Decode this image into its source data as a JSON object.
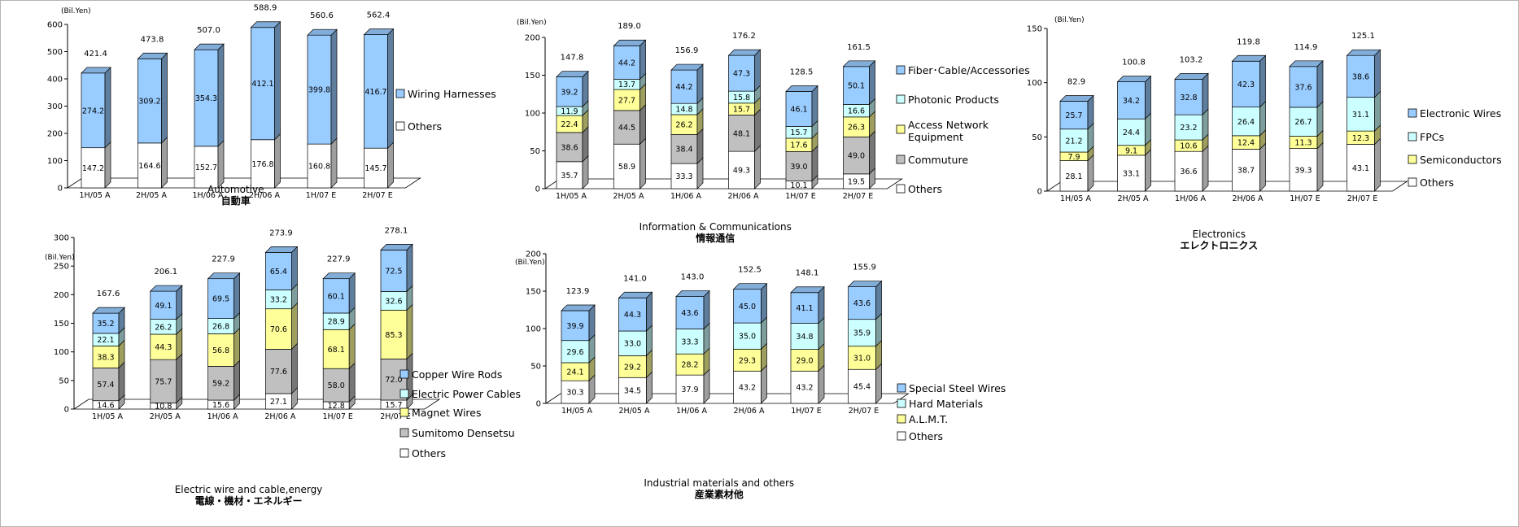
{
  "colors": {
    "Others": "#ffffff",
    "Wiring Harnesses": "#99ccff",
    "Fiber･Cable/Accessories": "#99ccff",
    "Photonic Products": "#ccffff",
    "Access Network Equipment": "#ffff99",
    "Commuture": "#c0c0c0",
    "Electronic Wires": "#99ccff",
    "FPCs": "#ccffff",
    "Semiconductors": "#ffff99",
    "Copper Wire Rods": "#99ccff",
    "Electric Power Cables": "#ccffff",
    "Magnet Wires": "#ffff99",
    "Sumitomo Densetsu": "#c0c0c0",
    "Special Steel Wires": "#99ccff",
    "Hard Materials": "#ccffff",
    "A.L.M.T.": "#ffff99"
  },
  "chart_data": [
    {
      "type": "bar",
      "stacked": true,
      "title": "Automotive",
      "subtitle": "自動車",
      "unit": "(Bil.Yen)",
      "categories": [
        "1H/05 A",
        "2H/05 A",
        "1H/06 A",
        "2H/06 A",
        "1H/07 E",
        "2H/07 E"
      ],
      "ylim": [
        0,
        600
      ],
      "yticks": [
        0,
        100,
        200,
        300,
        400,
        500,
        600
      ],
      "series": [
        {
          "name": "Others",
          "values": [
            147.2,
            164.6,
            152.7,
            176.8,
            160.8,
            145.7
          ]
        },
        {
          "name": "Wiring Harnesses",
          "values": [
            274.2,
            309.2,
            354.3,
            412.1,
            399.8,
            416.7
          ]
        }
      ],
      "totals": [
        "421.4",
        "473.8",
        "507.0",
        "588.9",
        "560.6",
        "562.4"
      ],
      "legend_order": [
        "Wiring Harnesses",
        "Others"
      ],
      "legend_position": "right"
    },
    {
      "type": "bar",
      "stacked": true,
      "title": "Information & Communications",
      "subtitle": "情報通信",
      "unit": "(Bil.Yen)",
      "categories": [
        "1H/05 A",
        "2H/05 A",
        "1H/06 A",
        "2H/06 A",
        "1H/07 E",
        "2H/07 E"
      ],
      "ylim": [
        0,
        200
      ],
      "yticks": [
        0,
        50,
        100,
        150,
        200
      ],
      "series": [
        {
          "name": "Others",
          "values": [
            35.7,
            58.9,
            33.3,
            49.3,
            10.1,
            19.5
          ]
        },
        {
          "name": "Commuture",
          "values": [
            38.6,
            44.5,
            38.4,
            48.1,
            39.0,
            49.0
          ]
        },
        {
          "name": "Access Network Equipment",
          "values": [
            22.4,
            27.7,
            26.2,
            15.7,
            17.6,
            26.3
          ]
        },
        {
          "name": "Photonic Products",
          "values": [
            11.9,
            13.7,
            14.8,
            15.8,
            15.7,
            16.6
          ]
        },
        {
          "name": "Fiber･Cable/Accessories",
          "values": [
            39.2,
            44.2,
            44.2,
            47.3,
            46.1,
            50.1
          ]
        }
      ],
      "totals": [
        "147.8",
        "189.0",
        "156.9",
        "176.2",
        "128.5",
        "161.5"
      ],
      "legend_order": [
        "Fiber･Cable/Accessories",
        "Photonic Products",
        "Access Network Equipment",
        "Commuture",
        "Others"
      ],
      "legend_position": "right"
    },
    {
      "type": "bar",
      "stacked": true,
      "title": "Electronics",
      "subtitle": "エレクトロニクス",
      "unit": "(Bil.Yen)",
      "categories": [
        "1H/05 A",
        "2H/05 A",
        "1H/06 A",
        "2H/06 A",
        "1H/07 E",
        "2H/07 E"
      ],
      "ylim": [
        0,
        150
      ],
      "yticks": [
        0,
        50,
        100,
        150
      ],
      "series": [
        {
          "name": "Others",
          "values": [
            28.1,
            33.1,
            36.6,
            38.7,
            39.3,
            43.1
          ]
        },
        {
          "name": "Semiconductors",
          "values": [
            7.9,
            9.1,
            10.6,
            12.4,
            11.3,
            12.3
          ]
        },
        {
          "name": "FPCs",
          "values": [
            21.2,
            24.4,
            23.2,
            26.4,
            26.7,
            31.1
          ]
        },
        {
          "name": "Electronic Wires",
          "values": [
            25.7,
            34.2,
            32.8,
            42.3,
            37.6,
            38.6
          ]
        }
      ],
      "totals": [
        "82.9",
        "100.8",
        "103.2",
        "119.8",
        "114.9",
        "125.1"
      ],
      "legend_order": [
        "Electronic Wires",
        "FPCs",
        "Semiconductors",
        "Others"
      ],
      "legend_position": "right"
    },
    {
      "type": "bar",
      "stacked": true,
      "title": "Electric wire and cable,energy",
      "subtitle": "電線・機材・エネルギー",
      "unit": "(Bil.Yen)",
      "categories": [
        "1H/05 A",
        "2H/05 A",
        "1H/06 A",
        "2H/06 A",
        "1H/07 E",
        "2H/07 E"
      ],
      "ylim": [
        0,
        300
      ],
      "yticks": [
        0,
        50,
        100,
        150,
        200,
        250,
        300
      ],
      "series": [
        {
          "name": "Others",
          "values": [
            14.6,
            10.8,
            15.6,
            27.1,
            12.8,
            15.7
          ]
        },
        {
          "name": "Sumitomo Densetsu",
          "values": [
            57.4,
            75.7,
            59.2,
            77.6,
            58.0,
            72.0
          ]
        },
        {
          "name": "Magnet Wires",
          "values": [
            38.3,
            44.3,
            56.8,
            70.6,
            68.1,
            85.3
          ]
        },
        {
          "name": "Electric Power Cables",
          "values": [
            22.1,
            26.2,
            26.8,
            33.2,
            28.9,
            32.6
          ]
        },
        {
          "name": "Copper Wire Rods",
          "values": [
            35.2,
            49.1,
            69.5,
            65.4,
            60.1,
            72.5
          ]
        }
      ],
      "totals": [
        "167.6",
        "206.1",
        "227.9",
        "273.9",
        "227.9",
        "278.1"
      ],
      "legend_order": [
        "Copper Wire Rods",
        "Electric Power Cables",
        "Magnet Wires",
        "Sumitomo Densetsu",
        "Others"
      ],
      "legend_position": "right"
    },
    {
      "type": "bar",
      "stacked": true,
      "title": "Industrial materials and others",
      "subtitle": "産業素材他",
      "unit": "(Bil.Yen)",
      "categories": [
        "1H/05 A",
        "2H/05 A",
        "1H/06 A",
        "2H/06 A",
        "1H/07 E",
        "2H/07 E"
      ],
      "ylim": [
        0,
        200
      ],
      "yticks": [
        0,
        50,
        100,
        150,
        200
      ],
      "series": [
        {
          "name": "Others",
          "values": [
            30.3,
            34.5,
            37.9,
            43.2,
            43.2,
            45.4
          ]
        },
        {
          "name": "A.L.M.T.",
          "values": [
            24.1,
            29.2,
            28.2,
            29.3,
            29.0,
            31.0
          ]
        },
        {
          "name": "Hard Materials",
          "values": [
            29.6,
            33.0,
            33.3,
            35.0,
            34.8,
            35.9
          ]
        },
        {
          "name": "Special Steel Wires",
          "values": [
            39.9,
            44.3,
            43.6,
            45.0,
            41.1,
            43.6
          ]
        }
      ],
      "totals": [
        "123.9",
        "141.0",
        "143.0",
        "152.5",
        "148.1",
        "155.9"
      ],
      "legend_order": [
        "Special Steel Wires",
        "Hard Materials",
        "A.L.M.T.",
        "Others"
      ],
      "legend_position": "right"
    }
  ]
}
